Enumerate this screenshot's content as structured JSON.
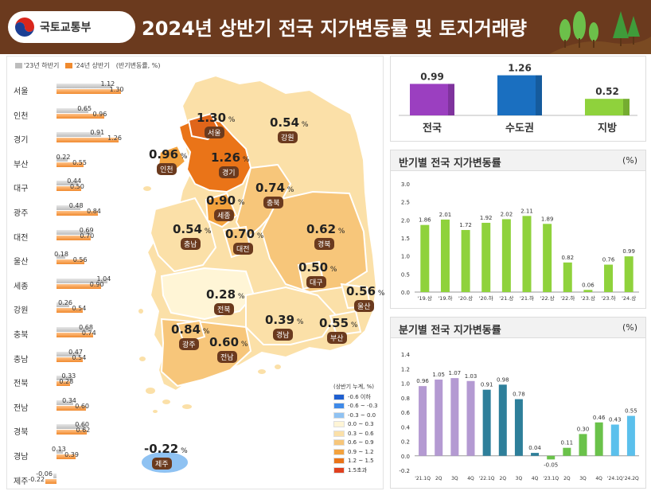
{
  "header": {
    "ministry": "국토교통부",
    "title": "2024년 상반기 전국 지가변동률 및 토지거래량"
  },
  "region_legend": {
    "prev": "'23년 하반기",
    "curr": "'24년 상반기",
    "note": "(반기변동률, %)"
  },
  "chart_data": [
    {
      "type": "bar",
      "orientation": "horizontal",
      "categories": [
        "서울",
        "인천",
        "경기",
        "부산",
        "대구",
        "광주",
        "대전",
        "울산",
        "세종",
        "강원",
        "충북",
        "충남",
        "전북",
        "전남",
        "경북",
        "경남",
        "제주"
      ],
      "series": [
        {
          "name": "'23년 하반기",
          "color": "#bdbdbd",
          "values": [
            1.12,
            0.65,
            0.91,
            0.22,
            0.44,
            0.48,
            0.69,
            0.18,
            1.04,
            0.26,
            0.68,
            0.47,
            0.33,
            0.34,
            0.6,
            0.13,
            -0.06
          ]
        },
        {
          "name": "'24년 상반기",
          "color": "#f08a2e",
          "values": [
            1.3,
            0.96,
            1.26,
            0.55,
            0.5,
            0.84,
            0.7,
            0.56,
            0.9,
            0.54,
            0.74,
            0.54,
            0.28,
            0.6,
            0.62,
            0.39,
            -0.22
          ]
        }
      ],
      "value_labels_prev": [
        "1.12",
        "0.65",
        "0.91",
        "0.22",
        "0.44",
        "0.48",
        "0.69",
        "0.18",
        "1.04",
        "0.26",
        "0.68",
        "0.47",
        "0.33",
        "0.34",
        "0.60",
        "0.13",
        "-0.06"
      ],
      "value_labels_curr": [
        "1.30",
        "0.96",
        "1.26",
        "0.55",
        "0.50",
        "0.84",
        "0.70",
        "0.56",
        "0.90",
        "0.54",
        "0.74",
        "0.54",
        "0.28",
        "0.60",
        "0.62",
        "0.39",
        "-0.22"
      ]
    },
    {
      "type": "bar",
      "categories": [
        "전국",
        "수도권",
        "지방"
      ],
      "values": [
        0.99,
        1.26,
        0.52
      ],
      "labels": [
        "0.99",
        "1.26",
        "0.52"
      ],
      "colors": [
        "#9b3fc0",
        "#1a6fc0",
        "#8fd23c"
      ]
    },
    {
      "type": "bar",
      "title": "반기별 전국 지가변동률",
      "unit": "(%)",
      "categories": [
        "'19.상",
        "'19.하",
        "'20.상",
        "'20.하",
        "'21.상",
        "'21.하",
        "'22.상",
        "'22.하",
        "'23.상",
        "'23.하",
        "'24.상"
      ],
      "values": [
        1.86,
        2.01,
        1.72,
        1.92,
        2.02,
        2.11,
        1.89,
        0.82,
        0.06,
        0.76,
        0.99
      ],
      "labels": [
        "1.86",
        "2.01",
        "1.72",
        "1.92",
        "2.02",
        "2.11",
        "1.89",
        "0.82",
        "0.06",
        "0.76",
        "0.99"
      ],
      "ylim": [
        0,
        3.0
      ],
      "yticks": [
        "0.0",
        "0.5",
        "1.0",
        "1.5",
        "2.0",
        "2.5",
        "3.0"
      ],
      "color": "#8fd23c"
    },
    {
      "type": "bar",
      "title": "분기별 전국 지가변동률",
      "unit": "(%)",
      "categories": [
        "'21.1Q",
        "2Q",
        "3Q",
        "4Q",
        "'22.1Q",
        "2Q",
        "3Q",
        "4Q",
        "'23.1Q",
        "2Q",
        "3Q",
        "4Q",
        "'24.1Q",
        "'24.2Q"
      ],
      "values": [
        0.96,
        1.05,
        1.07,
        1.03,
        0.91,
        0.98,
        0.78,
        0.04,
        -0.05,
        0.11,
        0.3,
        0.46,
        0.43,
        0.55
      ],
      "labels": [
        "0.96",
        "1.05",
        "1.07",
        "1.03",
        "0.91",
        "0.98",
        "0.78",
        "0.04",
        "-0.05",
        "0.11",
        "0.30",
        "0.46",
        "0.43",
        "0.55"
      ],
      "colors": [
        "#b49ad2",
        "#b49ad2",
        "#b49ad2",
        "#b49ad2",
        "#2e7f9a",
        "#2e7f9a",
        "#2e7f9a",
        "#2e7f9a",
        "#6ac24a",
        "#6ac24a",
        "#6ac24a",
        "#6ac24a",
        "#5bc0ec",
        "#5bc0ec"
      ],
      "ylim": [
        -0.2,
        1.4
      ],
      "yticks": [
        "-0.2",
        "0.0",
        "0.2",
        "0.4",
        "0.6",
        "0.8",
        "1.0",
        "1.2",
        "1.4"
      ]
    }
  ],
  "map": {
    "legend_title": "(상반기 누계, %)",
    "legend": [
      {
        "label": "-0.6 이하",
        "color": "#1f5fd0"
      },
      {
        "label": "-0.6 ~ -0.3",
        "color": "#3f8ae8"
      },
      {
        "label": "-0.3 ~ 0.0",
        "color": "#8fc2f2"
      },
      {
        "label": "0.0 ~ 0.3",
        "color": "#fff5d6"
      },
      {
        "label": "0.3 ~ 0.6",
        "color": "#fbe0a8"
      },
      {
        "label": "0.6 ~ 0.9",
        "color": "#f7c67a"
      },
      {
        "label": "0.9 ~ 1.2",
        "color": "#f3a23d"
      },
      {
        "label": "1.2 ~ 1.5",
        "color": "#ea7418"
      },
      {
        "label": "1.5초과",
        "color": "#e0401e"
      }
    ],
    "regions": [
      {
        "name": "서울",
        "value": "1.30"
      },
      {
        "name": "강원",
        "value": "0.54"
      },
      {
        "name": "인천",
        "value": "0.96"
      },
      {
        "name": "경기",
        "value": "1.26"
      },
      {
        "name": "충북",
        "value": "0.74"
      },
      {
        "name": "세종",
        "value": "0.90"
      },
      {
        "name": "충남",
        "value": "0.54"
      },
      {
        "name": "대전",
        "value": "0.70"
      },
      {
        "name": "경북",
        "value": "0.62"
      },
      {
        "name": "대구",
        "value": "0.50"
      },
      {
        "name": "울산",
        "value": "0.56"
      },
      {
        "name": "전북",
        "value": "0.28"
      },
      {
        "name": "경남",
        "value": "0.39"
      },
      {
        "name": "부산",
        "value": "0.55"
      },
      {
        "name": "광주",
        "value": "0.84"
      },
      {
        "name": "전남",
        "value": "0.60"
      },
      {
        "name": "제주",
        "value": "-0.22"
      }
    ],
    "pct_sign": "%"
  }
}
